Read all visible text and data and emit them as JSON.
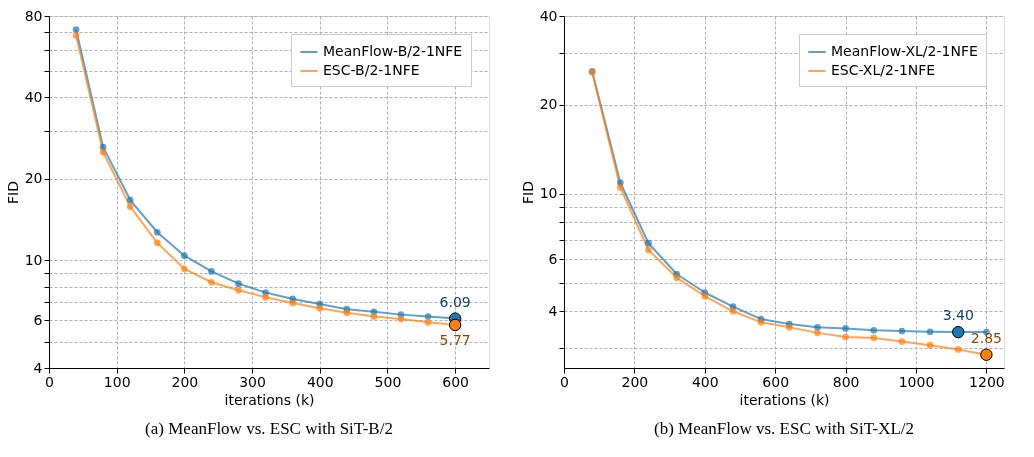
{
  "chart_data": [
    {
      "type": "line",
      "title": "(a) MeanFlow vs. ESC with SiT-B/2",
      "xlabel": "iterations (k)",
      "ylabel": "FID",
      "log": "y",
      "grid": true,
      "legend": "top right",
      "marker": "circle",
      "line_style": "solid",
      "x": [
        40,
        80,
        120,
        160,
        200,
        240,
        280,
        320,
        360,
        400,
        440,
        480,
        520,
        560,
        600
      ],
      "xlim": [
        0,
        650
      ],
      "xticks": [
        0,
        100,
        200,
        300,
        400,
        500,
        600
      ],
      "ylim": [
        4,
        80
      ],
      "yticks": [
        4,
        {
          "value": 5,
          "label": null
        },
        6,
        {
          "value": 7,
          "label": null
        },
        {
          "value": 8,
          "label": null
        },
        {
          "value": 9,
          "label": null
        },
        10,
        20,
        {
          "value": 30,
          "label": null
        },
        40,
        {
          "value": 50,
          "label": null
        },
        {
          "value": 60,
          "label": null
        },
        {
          "value": 70,
          "label": null
        },
        80
      ],
      "series": [
        {
          "name": "MeanFlow-B/2-1NFE",
          "color": "#1f77b4",
          "values": [
            71.3,
            26.2,
            16.7,
            12.7,
            10.4,
            9.1,
            8.2,
            7.6,
            7.2,
            6.9,
            6.6,
            6.45,
            6.3,
            6.2,
            6.09
          ]
        },
        {
          "name": "ESC-B/2-1NFE",
          "color": "#ff7f0e",
          "values": [
            67.8,
            25.1,
            15.8,
            11.6,
            9.3,
            8.3,
            7.75,
            7.3,
            6.95,
            6.65,
            6.4,
            6.2,
            6.07,
            5.9,
            5.77
          ]
        },
        {
          "type": "scatter",
          "color": "#1f77b4",
          "x": [
            600
          ],
          "values": [
            6.09
          ]
        },
        {
          "type": "scatter",
          "color": "#ff7f0e",
          "x": [
            600
          ],
          "values": [
            5.77
          ]
        }
      ],
      "annotations": [
        {
          "text": "6.09",
          "x": 600,
          "y": 6.09
        },
        {
          "text": "5.77",
          "x": 600,
          "y": 5.77
        }
      ]
    },
    {
      "type": "line",
      "title": "(b) MeanFlow vs. ESC with SiT-XL/2",
      "xlabel": "iterations (k)",
      "ylabel": "FID",
      "log": "y",
      "grid": true,
      "legend": "top right",
      "marker": "circle",
      "line_style": "solid",
      "x": [
        80,
        160,
        240,
        320,
        400,
        480,
        560,
        640,
        720,
        800,
        880,
        960,
        1040,
        1120,
        1200
      ],
      "xlim": [
        0,
        1250
      ],
      "xticks": [
        0,
        200,
        400,
        600,
        800,
        1000,
        1200
      ],
      "ylim": [
        2.57,
        40
      ],
      "yticks": [
        {
          "value": 3,
          "label": null
        },
        4,
        {
          "value": 5,
          "label": null
        },
        6,
        {
          "value": 7,
          "label": null
        },
        {
          "value": 8,
          "label": null
        },
        {
          "value": 9,
          "label": null
        },
        10,
        20,
        {
          "value": 30,
          "label": null
        },
        40
      ],
      "series": [
        {
          "name": "MeanFlow-XL/2-1NFE",
          "color": "#1f77b4",
          "values": [
            26.0,
            10.9,
            6.8,
            5.35,
            4.63,
            4.15,
            3.76,
            3.62,
            3.53,
            3.5,
            3.45,
            3.43,
            3.41,
            3.4,
            3.4
          ]
        },
        {
          "name": "ESC-XL/2-1NFE",
          "color": "#ff7f0e",
          "values": [
            25.8,
            10.5,
            6.45,
            5.2,
            4.5,
            4.0,
            3.67,
            3.53,
            3.38,
            3.27,
            3.25,
            3.16,
            3.07,
            2.97,
            2.85
          ]
        },
        {
          "type": "scatter",
          "color": "#1f77b4",
          "x": [
            1120
          ],
          "values": [
            3.4
          ]
        },
        {
          "type": "scatter",
          "color": "#ff7f0e",
          "x": [
            1200
          ],
          "values": [
            2.85
          ]
        }
      ],
      "annotations": [
        {
          "text": "3.40",
          "x": 1120,
          "y": 3.4
        },
        {
          "text": "2.85",
          "x": 1200,
          "y": 2.85
        }
      ]
    }
  ]
}
